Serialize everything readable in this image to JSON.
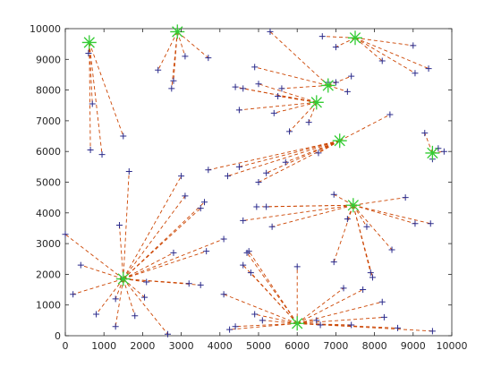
{
  "chart_data": {
    "type": "scatter",
    "title": "",
    "xlabel": "",
    "ylabel": "",
    "xlim": [
      0,
      10000
    ],
    "ylim": [
      0,
      10000
    ],
    "xticks": [
      0,
      1000,
      2000,
      3000,
      4000,
      5000,
      6000,
      7000,
      8000,
      9000,
      10000
    ],
    "yticks": [
      0,
      1000,
      2000,
      3000,
      4000,
      5000,
      6000,
      7000,
      8000,
      9000,
      10000
    ],
    "grid": false,
    "legend": "none",
    "colors": {
      "points": "#2b2b8c",
      "centers": "#33cc33",
      "links": "#cc4400",
      "axes": "#262626"
    },
    "clusters": [
      {
        "center": [
          620,
          9550
        ],
        "points": [
          [
            600,
            9200
          ],
          [
            700,
            7550
          ],
          [
            650,
            6050
          ],
          [
            950,
            5900
          ],
          [
            1500,
            6500
          ]
        ]
      },
      {
        "center": [
          2900,
          9900
        ],
        "points": [
          [
            2400,
            8650
          ],
          [
            2750,
            8050
          ],
          [
            2800,
            8300
          ],
          [
            3100,
            9100
          ],
          [
            3700,
            9050
          ]
        ]
      },
      {
        "center": [
          7500,
          9700
        ],
        "points": [
          [
            6650,
            9750
          ],
          [
            7000,
            9400
          ],
          [
            8200,
            8950
          ],
          [
            9000,
            9450
          ],
          [
            9050,
            8550
          ],
          [
            9400,
            8700
          ]
        ]
      },
      {
        "center": [
          6800,
          8150
        ],
        "points": [
          [
            5300,
            9900
          ],
          [
            4900,
            8750
          ],
          [
            5600,
            8050
          ],
          [
            6800,
            8250
          ],
          [
            7000,
            8250
          ],
          [
            7300,
            7950
          ],
          [
            7400,
            8450
          ]
        ]
      },
      {
        "center": [
          6500,
          7600
        ],
        "points": [
          [
            4400,
            8100
          ],
          [
            4600,
            8050
          ],
          [
            5000,
            8200
          ],
          [
            5500,
            7800
          ],
          [
            4500,
            7350
          ],
          [
            5400,
            7250
          ],
          [
            5800,
            6650
          ],
          [
            6300,
            6950
          ]
        ]
      },
      {
        "center": [
          9500,
          5950
        ],
        "points": [
          [
            9300,
            6600
          ],
          [
            9500,
            5750
          ],
          [
            9650,
            6100
          ],
          [
            9800,
            6000
          ]
        ]
      },
      {
        "center": [
          7100,
          6350
        ],
        "points": [
          [
            3700,
            5400
          ],
          [
            4200,
            5200
          ],
          [
            4500,
            5500
          ],
          [
            5000,
            5000
          ],
          [
            5200,
            5300
          ],
          [
            5700,
            5650
          ],
          [
            6550,
            5950
          ],
          [
            8400,
            7200
          ]
        ]
      },
      {
        "center": [
          1500,
          1850
        ],
        "points": [
          [
            0,
            3300
          ],
          [
            400,
            2300
          ],
          [
            200,
            1350
          ],
          [
            800,
            700
          ],
          [
            1300,
            300
          ],
          [
            1400,
            3600
          ],
          [
            1300,
            1200
          ],
          [
            1450,
            1850
          ],
          [
            1650,
            5350
          ],
          [
            1800,
            650
          ],
          [
            2050,
            1250
          ],
          [
            2800,
            2700
          ],
          [
            2650,
            50
          ],
          [
            2100,
            1750
          ],
          [
            3000,
            5200
          ],
          [
            3100,
            4550
          ],
          [
            3500,
            4150
          ],
          [
            3600,
            4350
          ],
          [
            3650,
            2750
          ],
          [
            3200,
            1700
          ],
          [
            3500,
            1650
          ],
          [
            4100,
            3150
          ]
        ]
      },
      {
        "center": [
          7450,
          4250
        ],
        "points": [
          [
            4600,
            3750
          ],
          [
            4950,
            4200
          ],
          [
            5200,
            4200
          ],
          [
            5350,
            3550
          ],
          [
            6950,
            4600
          ],
          [
            7300,
            3800
          ],
          [
            6950,
            2400
          ],
          [
            7800,
            3550
          ],
          [
            7900,
            2050
          ],
          [
            7950,
            1900
          ],
          [
            8450,
            2800
          ],
          [
            8800,
            4500
          ],
          [
            9050,
            3650
          ],
          [
            9450,
            3650
          ]
        ]
      },
      {
        "center": [
          6000,
          400
        ],
        "points": [
          [
            4100,
            1350
          ],
          [
            4250,
            200
          ],
          [
            4400,
            300
          ],
          [
            4600,
            2300
          ],
          [
            4700,
            2700
          ],
          [
            4750,
            2750
          ],
          [
            4800,
            2050
          ],
          [
            4900,
            700
          ],
          [
            5100,
            500
          ],
          [
            6000,
            2250
          ],
          [
            6500,
            500
          ],
          [
            6600,
            350
          ],
          [
            7200,
            1550
          ],
          [
            7400,
            350
          ],
          [
            7700,
            1500
          ],
          [
            8200,
            1100
          ],
          [
            8250,
            600
          ],
          [
            8600,
            250
          ],
          [
            9500,
            150
          ]
        ]
      }
    ]
  }
}
